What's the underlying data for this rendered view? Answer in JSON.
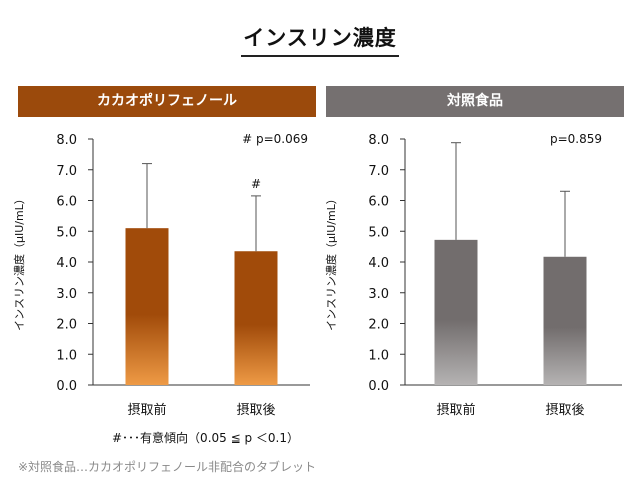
{
  "title": "インスリン濃度",
  "footnote_significance": "#･･･有意傾向（0.05 ≦ p ＜0.1）",
  "footnote_note": "※対照食品…カカオポリフェノール非配合のタブレット",
  "colors": {
    "cacao_header": "#9b4a0c",
    "cacao_bar_top": "#a14b0a",
    "cacao_bar_bottom": "#ee9a45",
    "control_header": "#757070",
    "control_bar_top": "#726d6d",
    "control_bar_bottom": "#b5b3b3"
  },
  "chart_data": [
    {
      "type": "bar",
      "panel_title": "カカオポリフェノール",
      "ylabel": "インスリン濃度（µIU/mL）",
      "ylim": [
        0,
        8
      ],
      "yticks": [
        "0.0",
        "1.0",
        "2.0",
        "3.0",
        "4.0",
        "5.0",
        "6.0",
        "7.0",
        "8.0"
      ],
      "categories": [
        "摂取前",
        "摂取後"
      ],
      "values": [
        5.1,
        4.35
      ],
      "error_upper": [
        7.2,
        6.15
      ],
      "p_value_label": "# p=0.069",
      "bar_marks": [
        "",
        "#"
      ]
    },
    {
      "type": "bar",
      "panel_title": "対照食品",
      "ylabel": "インスリン濃度（µIU/mL）",
      "ylim": [
        0,
        8
      ],
      "yticks": [
        "0.0",
        "1.0",
        "2.0",
        "3.0",
        "4.0",
        "5.0",
        "6.0",
        "7.0",
        "8.0"
      ],
      "categories": [
        "摂取前",
        "摂取後"
      ],
      "values": [
        4.72,
        4.17
      ],
      "error_upper": [
        7.88,
        6.3
      ],
      "p_value_label": "p=0.859",
      "bar_marks": [
        "",
        ""
      ]
    }
  ]
}
